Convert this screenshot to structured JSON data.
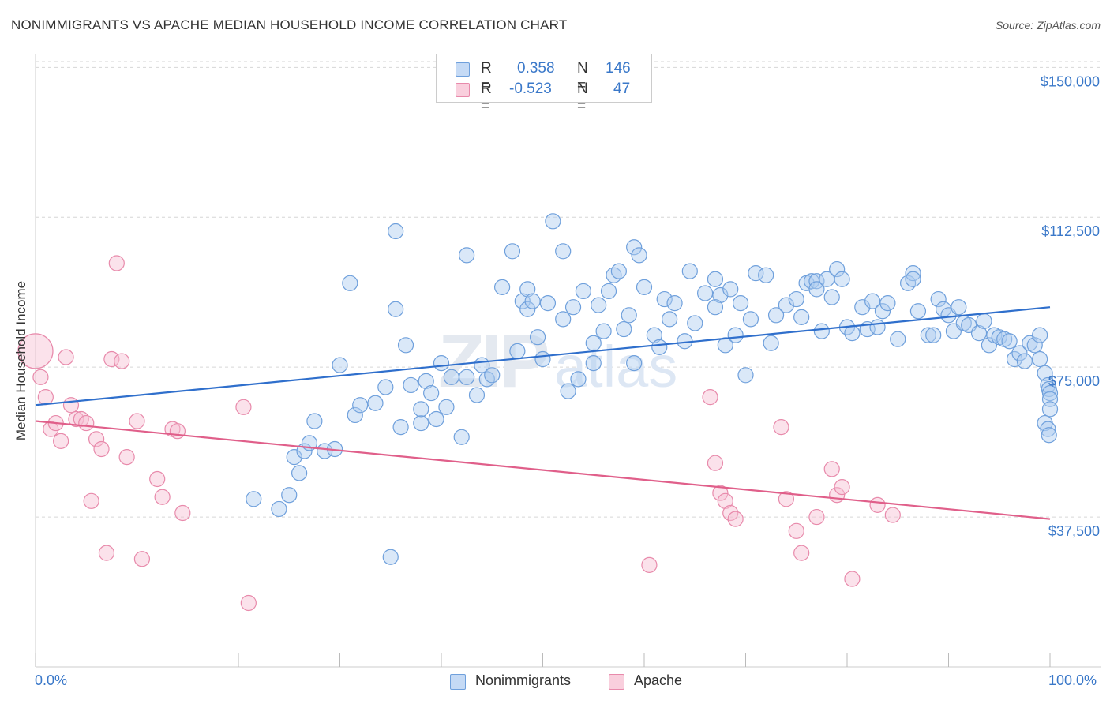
{
  "title": "NONIMMIGRANTS VS APACHE MEDIAN HOUSEHOLD INCOME CORRELATION CHART",
  "source": "Source: ZipAtlas.com",
  "watermark": "ZIPatlas",
  "chart_data": {
    "type": "scatter",
    "title": "NONIMMIGRANTS VS APACHE MEDIAN HOUSEHOLD INCOME CORRELATION CHART",
    "xlabel": "",
    "ylabel": "Median Household Income",
    "xlim": [
      0,
      100
    ],
    "ylim": [
      0,
      155000
    ],
    "x_tick_labels": [
      "0.0%",
      "100.0%"
    ],
    "y_ticks": [
      37500,
      75000,
      112500,
      150000
    ],
    "y_tick_labels": [
      "$37,500",
      "$75,000",
      "$112,500",
      "$150,000"
    ],
    "grid": "horizontal dashed",
    "legend_position": "bottom-center",
    "stats": [
      {
        "name": "Nonimmigrants",
        "r_label": "R =",
        "r": "0.358",
        "n_label": "N =",
        "n": "146"
      },
      {
        "name": "Apache",
        "r_label": "R =",
        "r": "-0.523",
        "n_label": "N =",
        "n": "47"
      }
    ],
    "series": [
      {
        "name": "Nonimmigrants",
        "color": "#6fa0dc",
        "fill": "#aecbf0",
        "trend": {
          "x": [
            0,
            100
          ],
          "y": [
            65500,
            90000
          ],
          "color": "#2f6fcc"
        },
        "points": [
          [
            21.5,
            42
          ],
          [
            24.0,
            39.5
          ],
          [
            25.0,
            43
          ],
          [
            25.5,
            52.5
          ],
          [
            26.0,
            48.5
          ],
          [
            26.5,
            54
          ],
          [
            27.0,
            56
          ],
          [
            27.5,
            61.5
          ],
          [
            28.5,
            54
          ],
          [
            29.5,
            54.5
          ],
          [
            30.0,
            75.5
          ],
          [
            31.0,
            96
          ],
          [
            31.5,
            63
          ],
          [
            32.0,
            65.5
          ],
          [
            33.5,
            66
          ],
          [
            34.5,
            70
          ],
          [
            35.0,
            27.5
          ],
          [
            35.5,
            89.5
          ],
          [
            35.5,
            109
          ],
          [
            36.0,
            60
          ],
          [
            36.5,
            80.5
          ],
          [
            37.0,
            70.5
          ],
          [
            38.0,
            61
          ],
          [
            38.0,
            64.5
          ],
          [
            38.5,
            71.5
          ],
          [
            39.0,
            68.5
          ],
          [
            39.5,
            62
          ],
          [
            40.0,
            76
          ],
          [
            40.5,
            65
          ],
          [
            41.0,
            72.5
          ],
          [
            42.0,
            57.5
          ],
          [
            42.5,
            103
          ],
          [
            42.5,
            72.5
          ],
          [
            43.5,
            68
          ],
          [
            44.0,
            75.5
          ],
          [
            44.5,
            72
          ],
          [
            45.0,
            73
          ],
          [
            46.0,
            95
          ],
          [
            47.0,
            104
          ],
          [
            47.5,
            79
          ],
          [
            48.0,
            91.5
          ],
          [
            48.5,
            89.5
          ],
          [
            48.5,
            94.5
          ],
          [
            49.0,
            91.5
          ],
          [
            49.5,
            82.5
          ],
          [
            50.0,
            77
          ],
          [
            50.5,
            91
          ],
          [
            51.0,
            111.5
          ],
          [
            52.0,
            104
          ],
          [
            52.0,
            87
          ],
          [
            52.5,
            69
          ],
          [
            53.0,
            90
          ],
          [
            53.5,
            72
          ],
          [
            54.0,
            94
          ],
          [
            55.0,
            76
          ],
          [
            55.0,
            81
          ],
          [
            55.5,
            90.5
          ],
          [
            56.0,
            84
          ],
          [
            56.5,
            94
          ],
          [
            57.0,
            98
          ],
          [
            57.5,
            99
          ],
          [
            58.0,
            84.5
          ],
          [
            58.5,
            88
          ],
          [
            59.0,
            76
          ],
          [
            59.0,
            105
          ],
          [
            59.5,
            103
          ],
          [
            60.0,
            95
          ],
          [
            61.0,
            83
          ],
          [
            61.5,
            80
          ],
          [
            62.0,
            92
          ],
          [
            62.5,
            87
          ],
          [
            63.0,
            91
          ],
          [
            64.0,
            81.5
          ],
          [
            64.5,
            99
          ],
          [
            65.0,
            86
          ],
          [
            66.0,
            93.5
          ],
          [
            67.0,
            97
          ],
          [
            67.5,
            93
          ],
          [
            67.0,
            90
          ],
          [
            68.0,
            80.5
          ],
          [
            68.5,
            94.5
          ],
          [
            69.0,
            83
          ],
          [
            69.5,
            91
          ],
          [
            70.0,
            73
          ],
          [
            70.5,
            87
          ],
          [
            71.0,
            98.5
          ],
          [
            72.0,
            98
          ],
          [
            72.5,
            81
          ],
          [
            73.0,
            88
          ],
          [
            74.0,
            90.5
          ],
          [
            75.0,
            92
          ],
          [
            75.5,
            87.5
          ],
          [
            76.0,
            96
          ],
          [
            76.5,
            96.5
          ],
          [
            77.0,
            96.5
          ],
          [
            77.0,
            94.5
          ],
          [
            77.5,
            84
          ],
          [
            78.0,
            97
          ],
          [
            78.5,
            92.5
          ],
          [
            79.0,
            99.5
          ],
          [
            79.5,
            97
          ],
          [
            80.0,
            85
          ],
          [
            80.5,
            83.5
          ],
          [
            81.5,
            90
          ],
          [
            82.0,
            84.5
          ],
          [
            82.5,
            91.5
          ],
          [
            83.0,
            85
          ],
          [
            83.5,
            89
          ],
          [
            84.0,
            91
          ],
          [
            85.0,
            82
          ],
          [
            86.0,
            96
          ],
          [
            86.5,
            98.5
          ],
          [
            86.5,
            97
          ],
          [
            87.0,
            89
          ],
          [
            88.0,
            83
          ],
          [
            88.5,
            83
          ],
          [
            89.0,
            92
          ],
          [
            89.5,
            89.5
          ],
          [
            90.0,
            88
          ],
          [
            90.5,
            84
          ],
          [
            91.0,
            90
          ],
          [
            91.5,
            86
          ],
          [
            92.0,
            85.5
          ],
          [
            93.0,
            83.5
          ],
          [
            93.5,
            86.5
          ],
          [
            94.0,
            80.5
          ],
          [
            94.5,
            83
          ],
          [
            95.0,
            82.5
          ],
          [
            95.5,
            82
          ],
          [
            96.0,
            81.5
          ],
          [
            96.5,
            77
          ],
          [
            97.0,
            78.5
          ],
          [
            97.5,
            76.5
          ],
          [
            98.0,
            81
          ],
          [
            98.5,
            80.5
          ],
          [
            99.0,
            77
          ],
          [
            99.5,
            73.5
          ],
          [
            99.8,
            70.5
          ],
          [
            99.9,
            69.5
          ],
          [
            100.0,
            68.5
          ],
          [
            100.0,
            67
          ],
          [
            100.0,
            64.5
          ],
          [
            99.5,
            61
          ],
          [
            99.8,
            59.5
          ],
          [
            99.9,
            58
          ],
          [
            99.0,
            83
          ]
        ]
      },
      {
        "name": "Apache",
        "color": "#e88aab",
        "fill": "#f7bfd2",
        "trend": {
          "x": [
            0,
            100
          ],
          "y": [
            61500,
            37000
          ],
          "color": "#e05f8a"
        },
        "points": [
          [
            0.0,
            79
          ],
          [
            0.5,
            72.5
          ],
          [
            1.0,
            67.5
          ],
          [
            1.5,
            59.5
          ],
          [
            2.0,
            61
          ],
          [
            2.5,
            56.5
          ],
          [
            3.0,
            77.5
          ],
          [
            3.5,
            65.5
          ],
          [
            4.0,
            62
          ],
          [
            4.5,
            62
          ],
          [
            5.0,
            61
          ],
          [
            5.5,
            41.5
          ],
          [
            6.0,
            57
          ],
          [
            6.5,
            54.5
          ],
          [
            7.0,
            28.5
          ],
          [
            7.5,
            77
          ],
          [
            8.0,
            101
          ],
          [
            8.5,
            76.5
          ],
          [
            9.0,
            52.5
          ],
          [
            10.0,
            61.5
          ],
          [
            10.5,
            27
          ],
          [
            12.0,
            47
          ],
          [
            12.5,
            42.5
          ],
          [
            13.5,
            59.5
          ],
          [
            14.0,
            59
          ],
          [
            14.5,
            38.5
          ],
          [
            20.5,
            65
          ],
          [
            21.0,
            16
          ],
          [
            60.5,
            25.5
          ],
          [
            66.5,
            67.5
          ],
          [
            67.0,
            51
          ],
          [
            67.5,
            43.5
          ],
          [
            68.0,
            41.5
          ],
          [
            68.5,
            38.5
          ],
          [
            69.0,
            37
          ],
          [
            73.5,
            60
          ],
          [
            74.0,
            42
          ],
          [
            75.0,
            34
          ],
          [
            75.5,
            28.5
          ],
          [
            77.0,
            37.5
          ],
          [
            78.5,
            49.5
          ],
          [
            79.0,
            43
          ],
          [
            79.5,
            45
          ],
          [
            80.5,
            22
          ],
          [
            83.0,
            40.5
          ],
          [
            84.5,
            38
          ]
        ]
      }
    ]
  }
}
